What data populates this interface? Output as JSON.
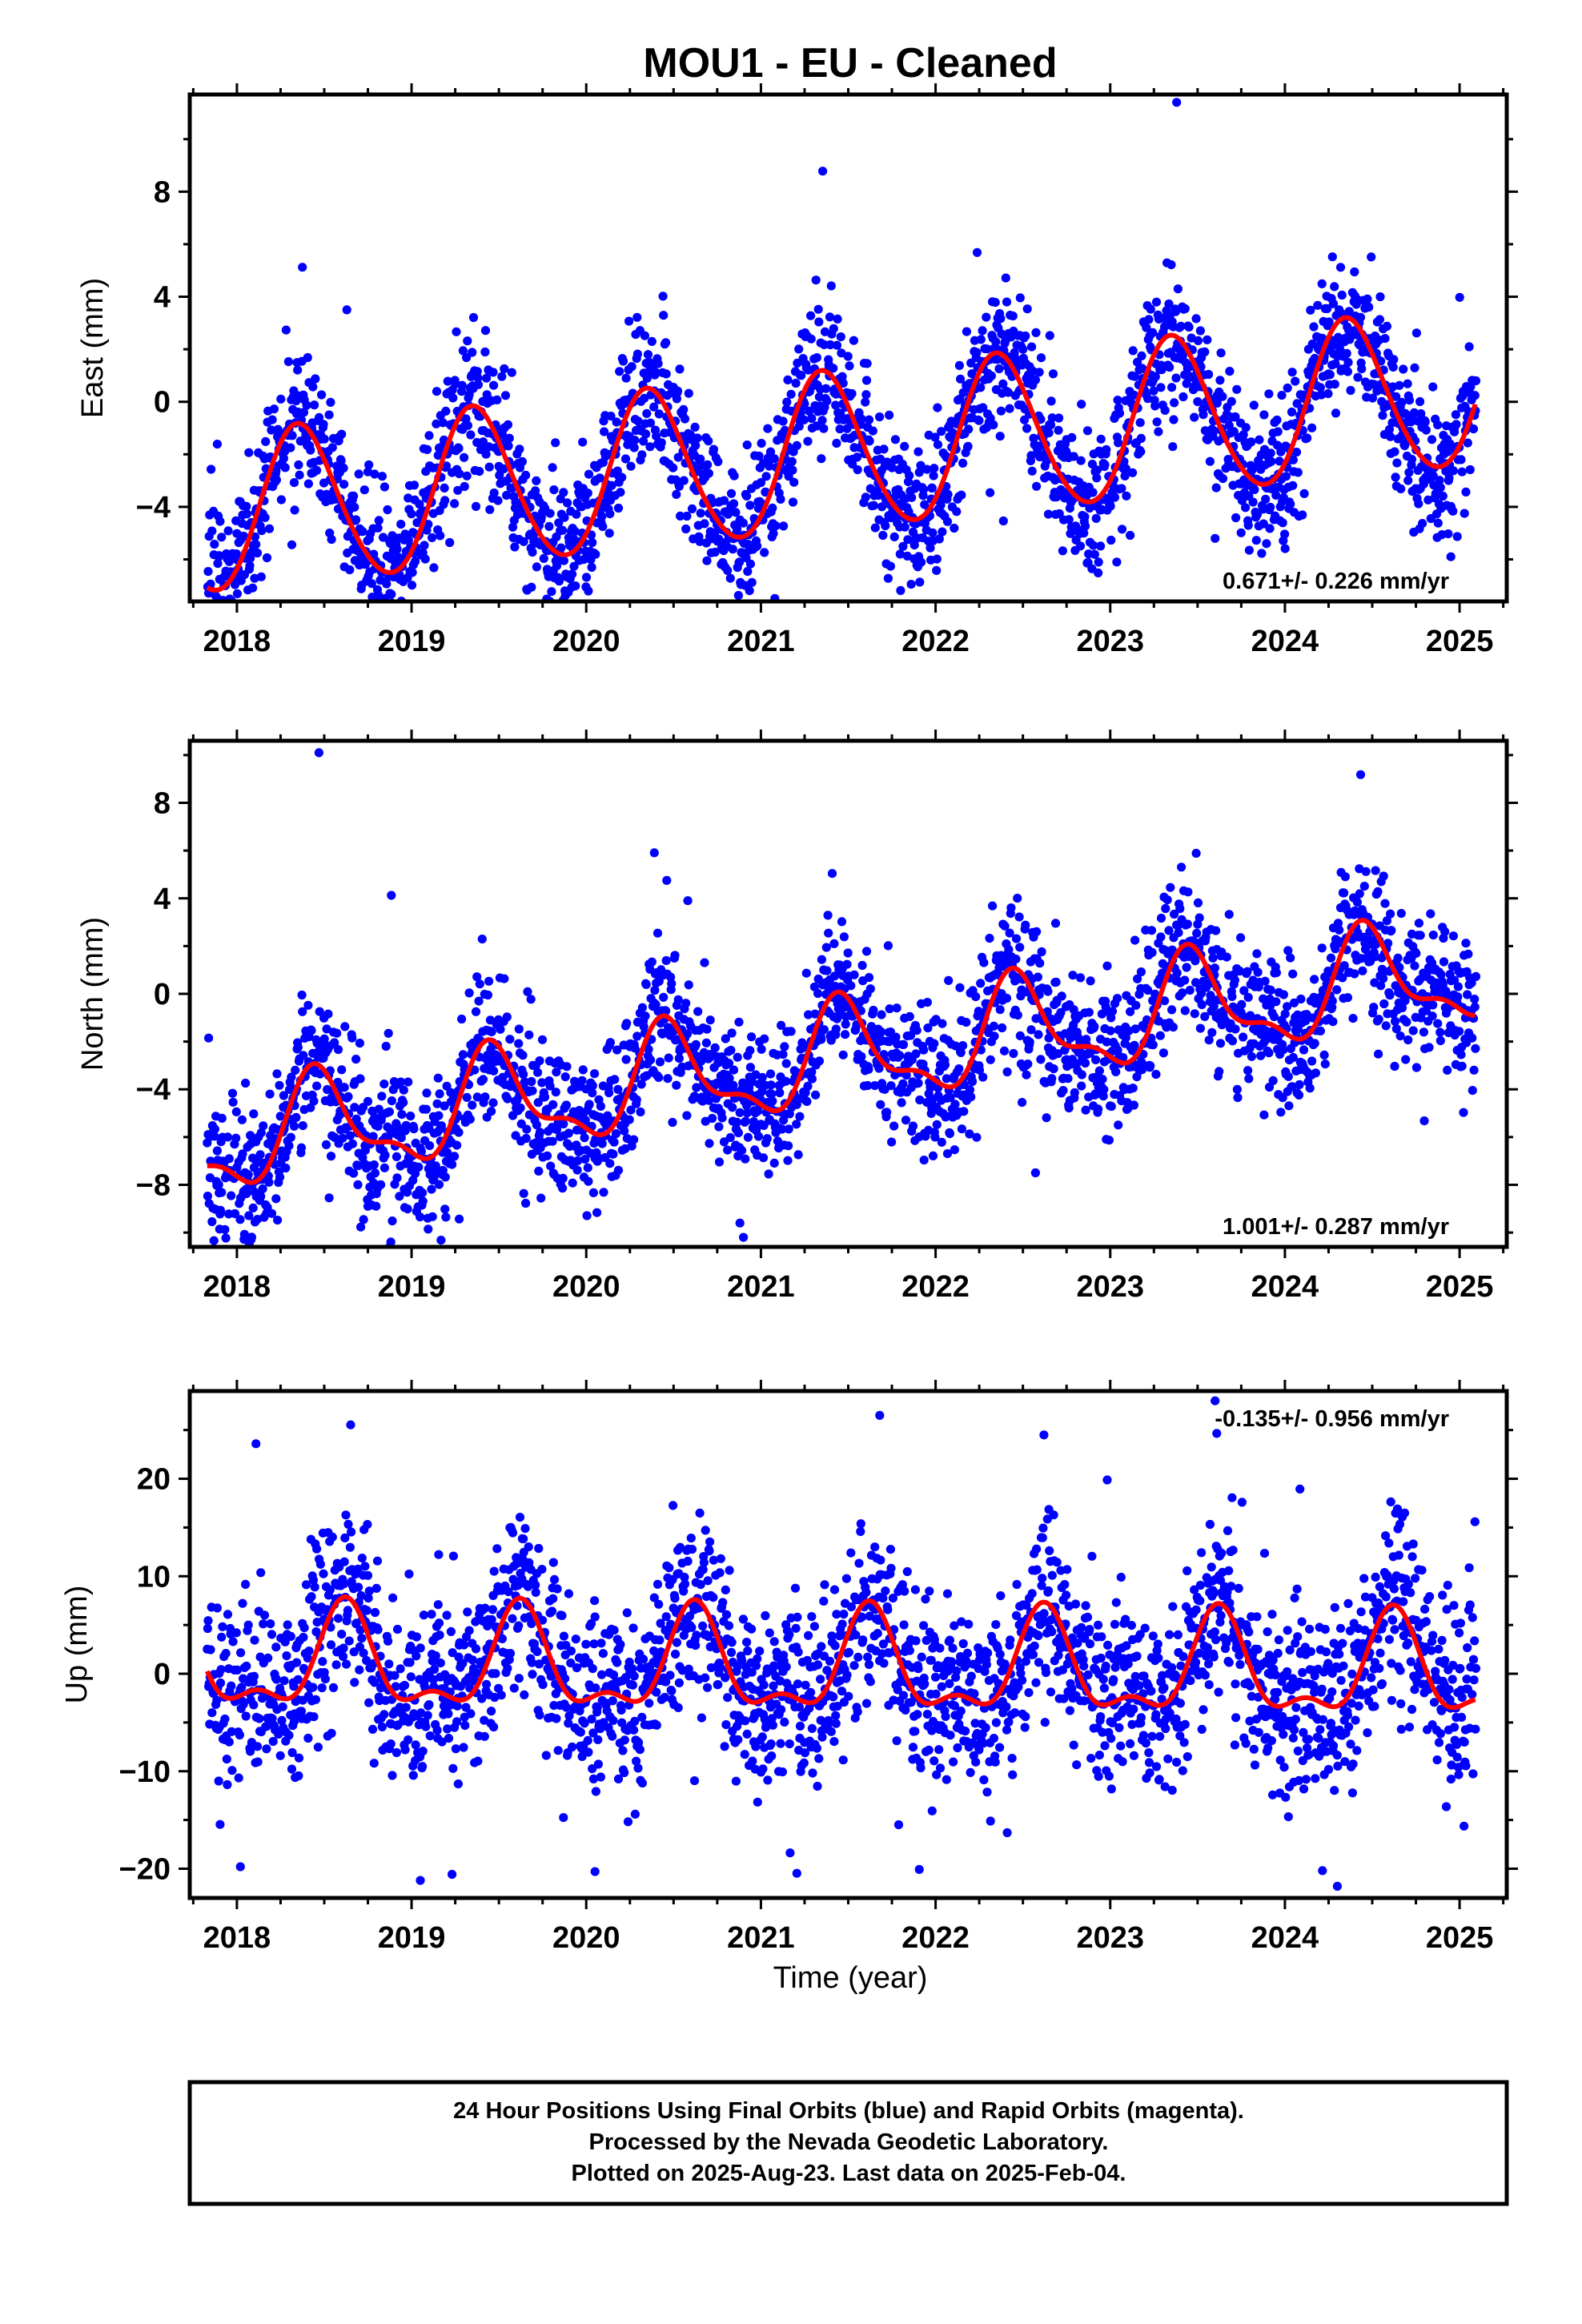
{
  "figure": {
    "title": "MOU1  - EU - Cleaned",
    "xlabel": "Time (year)",
    "footer": [
      "24 Hour Positions Using Final Orbits (blue) and Rapid Orbits (magenta).",
      "Processed by the Nevada Geodetic Laboratory.",
      "Plotted on 2025-Aug-23. Last data on 2025-Feb-04."
    ],
    "colors": {
      "points": "#0000ff",
      "model": "#ff0000",
      "frame": "#000000"
    }
  },
  "chart_data": [
    {
      "type": "scatter",
      "ylabel": "East (mm)",
      "rate_label": "0.671+/- 0.226 mm/yr",
      "rate_position": "bottom-right",
      "xlim": [
        2017.73,
        2025.27
      ],
      "ylim": [
        -7.6,
        11.7
      ],
      "xticks": [
        2018,
        2019,
        2020,
        2021,
        2022,
        2023,
        2024,
        2025
      ],
      "yticks": [
        -4,
        0,
        4,
        8
      ],
      "grid": false,
      "data_start": 2017.83,
      "data_end": 2025.095,
      "model": {
        "trend": 0.671,
        "offset": -1.9,
        "annual_amp": 3.0,
        "annual_peak": 0.36,
        "semiannual_amp": 0.25,
        "semiannual_peak": 0.3
      },
      "scatter": {
        "sigma": 1.35,
        "outlier_rate": 0.012,
        "outlier_sigma": 3.5
      },
      "outliers": [
        [
          2023.38,
          11.4
        ],
        [
          2018.8,
          -7.4
        ],
        [
          2024.95,
          -5.9
        ],
        [
          2023.6,
          -5.2
        ]
      ]
    },
    {
      "type": "scatter",
      "ylabel": "North (mm)",
      "rate_label": "1.001+/- 0.287 mm/yr",
      "rate_position": "bottom-right",
      "xlim": [
        2017.73,
        2025.27
      ],
      "ylim": [
        -10.6,
        10.6
      ],
      "xticks": [
        2018,
        2019,
        2020,
        2021,
        2022,
        2023,
        2024,
        2025
      ],
      "yticks": [
        -8,
        -4,
        0,
        4,
        8
      ],
      "grid": false,
      "data_start": 2017.83,
      "data_end": 2025.095,
      "model": {
        "trend": 1.001,
        "offset": -2.6,
        "annual_amp": 2.0,
        "annual_peak": 0.47,
        "semiannual_amp": 0.8,
        "semiannual_peak": 0.42
      },
      "scatter": {
        "sigma": 1.55,
        "outlier_rate": 0.015,
        "outlier_sigma": 3.5
      },
      "outliers": [
        [
          2018.47,
          10.1
        ],
        [
          2020.9,
          -10.2
        ],
        [
          2020.88,
          -9.6
        ],
        [
          2018.2,
          -9.2
        ],
        [
          2018.75,
          -8.9
        ]
      ]
    },
    {
      "type": "scatter",
      "ylabel": "Up (mm)",
      "rate_label": "-0.135+/- 0.956 mm/yr",
      "rate_position": "top-right",
      "xlim": [
        2017.73,
        2025.27
      ],
      "ylim": [
        -23.0,
        29.0
      ],
      "xticks": [
        2018,
        2019,
        2020,
        2021,
        2022,
        2023,
        2024,
        2025
      ],
      "yticks": [
        -20,
        -10,
        0,
        10,
        20
      ],
      "grid": false,
      "data_start": 2017.83,
      "data_end": 2025.095,
      "model": {
        "trend": -0.135,
        "offset": 0.5,
        "annual_amp": 4.8,
        "annual_peak": 0.62,
        "semiannual_amp": 2.2,
        "semiannual_peak": 0.12
      },
      "scatter": {
        "sigma": 4.6,
        "outlier_rate": 0.02,
        "outlier_sigma": 3.0
      },
      "outliers": [
        [
          2023.6,
          28.0
        ],
        [
          2021.68,
          26.5
        ],
        [
          2022.62,
          24.5
        ],
        [
          2019.05,
          -21.2
        ],
        [
          2024.3,
          -21.8
        ],
        [
          2020.05,
          -20.3
        ],
        [
          2018.02,
          -19.8
        ]
      ]
    }
  ]
}
